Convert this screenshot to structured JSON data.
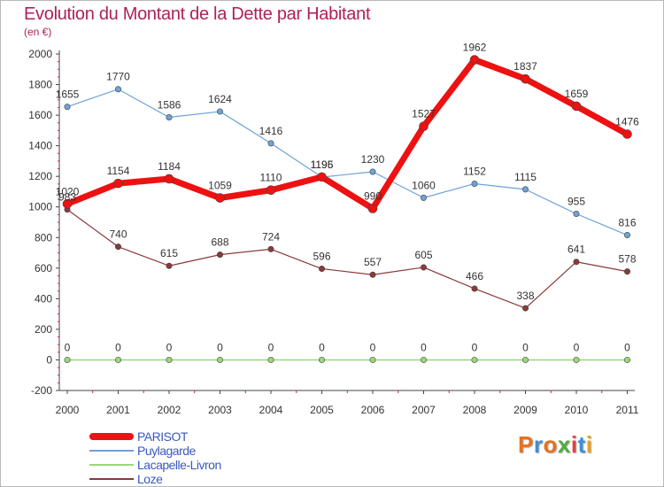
{
  "title": "Evolution du Montant de la Dette par Habitant",
  "subtitle": "(en €)",
  "logo": {
    "text": "Proxiti",
    "letters": [
      {
        "ch": "P",
        "color": "#e8711c"
      },
      {
        "ch": "r",
        "color": "#3d8fd6"
      },
      {
        "ch": "o",
        "color": "#e8711c"
      },
      {
        "ch": "x",
        "color": "#4caf3c"
      },
      {
        "ch": "i",
        "color": "#e04040"
      },
      {
        "ch": "t",
        "color": "#3d8fd6"
      },
      {
        "ch": "i",
        "color": "#e8a21c"
      }
    ]
  },
  "chart_data": {
    "type": "line",
    "title": "Evolution du Montant de la Dette par Habitant",
    "subtitle": "(en €)",
    "xlabel": "",
    "ylabel": "",
    "x": [
      "2000",
      "2001",
      "2002",
      "2003",
      "2004",
      "2005",
      "2006",
      "2007",
      "2008",
      "2009",
      "2010",
      "2011"
    ],
    "ylim": [
      -200,
      2000
    ],
    "yticks": [
      -200,
      0,
      200,
      400,
      600,
      800,
      1000,
      1200,
      1400,
      1600,
      1800,
      2000
    ],
    "grid": false,
    "legend_position": "bottom-left",
    "series": [
      {
        "name": "PARISOT",
        "color": "#ee1111",
        "values": [
          1020,
          1154,
          1184,
          1059,
          1110,
          1196,
          990,
          1527,
          1962,
          1837,
          1659,
          1476
        ],
        "labels": [
          "1020",
          "1154",
          "1184",
          "1059",
          "1110",
          "1196",
          "990",
          "1527",
          "1962",
          "1837",
          "1659",
          "1476"
        ]
      },
      {
        "name": "Puylagarde",
        "color": "#6fa2d8",
        "values": [
          1655,
          1770,
          1586,
          1624,
          1416,
          1195,
          1230,
          1060,
          1152,
          1115,
          955,
          816
        ],
        "labels": [
          "1655",
          "1770",
          "1586",
          "1624",
          "1416",
          "1195",
          "1230",
          "1060",
          "1152",
          "1115",
          "955",
          "816"
        ]
      },
      {
        "name": "Lacapelle-Livron",
        "color": "#99d878",
        "values": [
          0,
          0,
          0,
          0,
          0,
          0,
          0,
          0,
          0,
          0,
          0,
          0
        ],
        "labels": [
          "0",
          "0",
          "0",
          "0",
          "0",
          "0",
          "0",
          "0",
          "0",
          "0",
          "0",
          "0"
        ]
      },
      {
        "name": "Loze",
        "color": "#8a3a3a",
        "values": [
          983,
          740,
          615,
          688,
          724,
          596,
          557,
          605,
          466,
          338,
          641,
          578
        ],
        "labels": [
          "983",
          "740",
          "615",
          "688",
          "724",
          "596",
          "557",
          "605",
          "466",
          "338",
          "641",
          "578"
        ]
      }
    ]
  }
}
